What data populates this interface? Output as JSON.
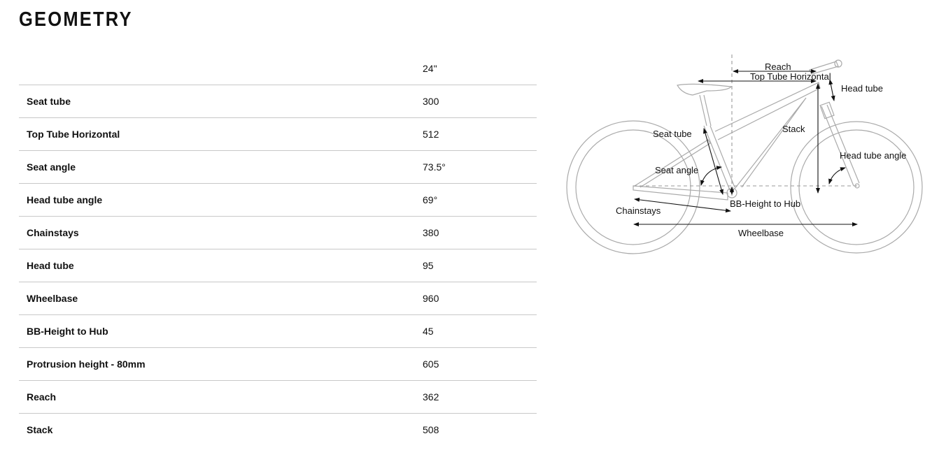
{
  "title": "GEOMETRY",
  "table": {
    "size_header": "24\"",
    "rows": [
      {
        "label": "Seat tube",
        "value": "300"
      },
      {
        "label": "Top Tube Horizontal",
        "value": "512"
      },
      {
        "label": "Seat angle",
        "value": "73.5°"
      },
      {
        "label": "Head tube angle",
        "value": "69°"
      },
      {
        "label": "Chainstays",
        "value": "380"
      },
      {
        "label": "Head tube",
        "value": "95"
      },
      {
        "label": "Wheelbase",
        "value": "960"
      },
      {
        "label": "BB-Height to Hub",
        "value": "45"
      },
      {
        "label": "Protrusion height - 80mm",
        "value": "605"
      },
      {
        "label": "Reach",
        "value": "362"
      },
      {
        "label": "Stack",
        "value": "508"
      }
    ]
  },
  "diagram": {
    "labels": {
      "reach": "Reach",
      "top_tube": "Top Tube Horizontal",
      "head_tube": "Head tube",
      "seat_tube": "Seat tube",
      "stack": "Stack",
      "head_tube_angle": "Head tube angle",
      "seat_angle": "Seat angle",
      "chainstays": "Chainstays",
      "bb_height": "BB-Height to Hub",
      "wheelbase": "Wheelbase"
    },
    "frame_color": "#aaaaaa",
    "dimension_color": "#111111"
  }
}
